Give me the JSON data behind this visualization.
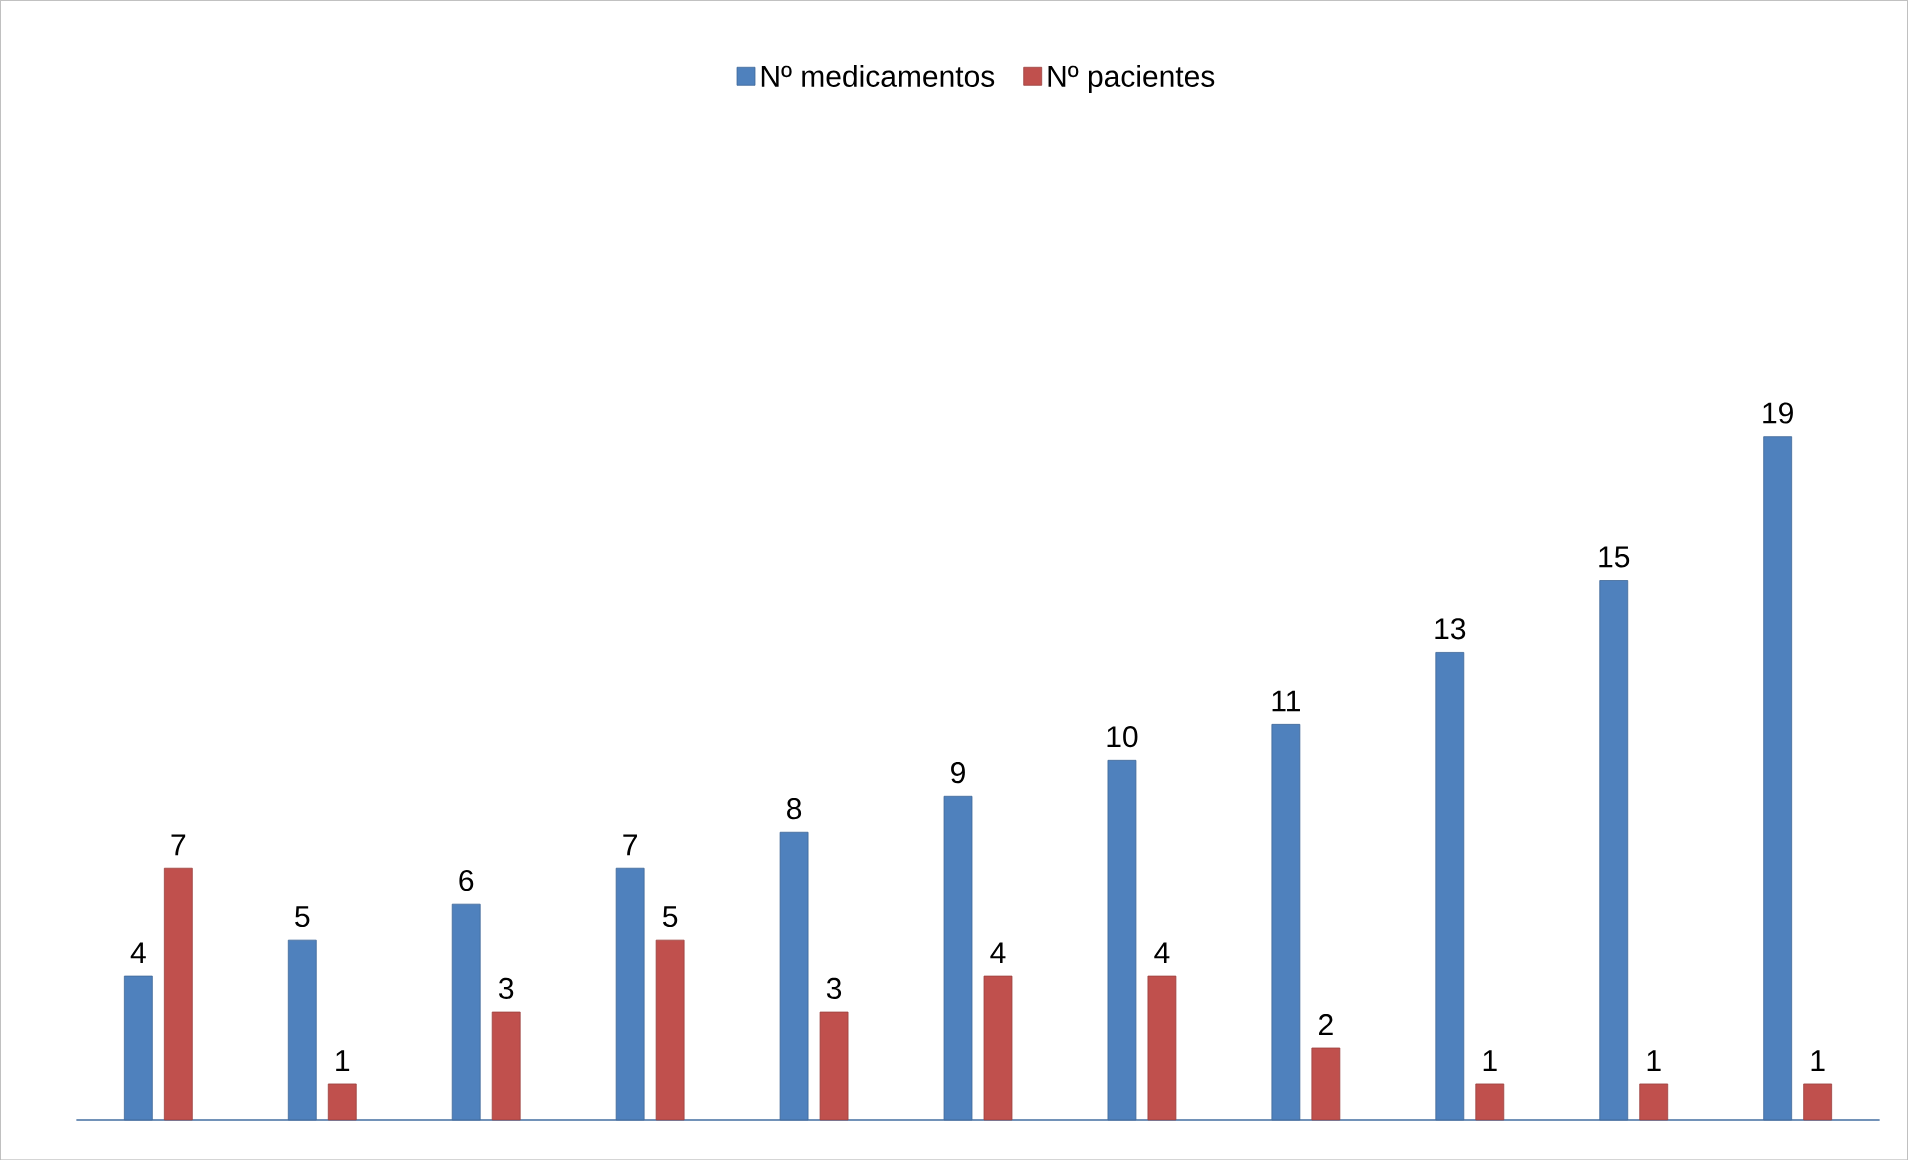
{
  "chart_data": {
    "type": "bar",
    "categories": [
      null,
      null,
      null,
      null,
      null,
      null,
      null,
      null,
      null,
      null,
      null
    ],
    "series": [
      {
        "name": "Nº medicamentos",
        "color": "#4f81bd",
        "values": [
          4,
          5,
          6,
          7,
          8,
          9,
          10,
          11,
          13,
          15,
          19
        ]
      },
      {
        "name": "Nº pacientes",
        "color": "#c0504d",
        "values": [
          7,
          1,
          3,
          5,
          3,
          4,
          4,
          2,
          1,
          1,
          1
        ]
      }
    ],
    "data_labels": true,
    "legend": "top"
  }
}
